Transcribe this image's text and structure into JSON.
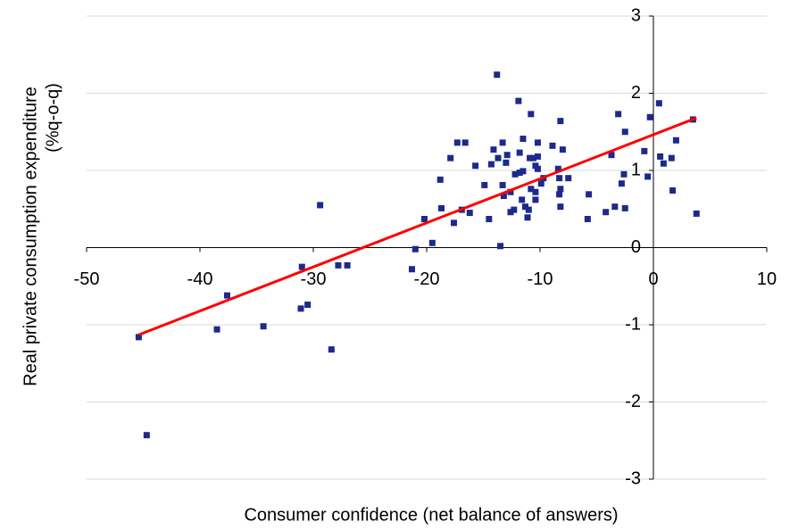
{
  "chart_data": {
    "type": "scatter",
    "x_label": "Consumer confidence (net balance of answers)",
    "y_label": [
      "Real private consumption expenditure",
      "(%q-o-q)"
    ],
    "x": [
      -45.4,
      -44.7,
      -38.5,
      -37.6,
      -34.4,
      -31.1,
      -31.0,
      -30.5,
      -29.4,
      -28.4,
      -27.8,
      -27.0,
      -21.3,
      -21.0,
      -20.2,
      -19.5,
      -18.8,
      -18.7,
      -17.9,
      -17.6,
      -17.3,
      -16.9,
      -16.6,
      -16.2,
      -15.7,
      -14.9,
      -14.5,
      -14.3,
      -14.1,
      -13.8,
      -13.7,
      -13.5,
      -13.3,
      -13.3,
      -13.2,
      -13.0,
      -12.9,
      -12.6,
      -12.6,
      -12.3,
      -12.2,
      -11.9,
      -11.8,
      -11.8,
      -11.6,
      -11.5,
      -11.5,
      -11.3,
      -11.1,
      -11.0,
      -10.9,
      -10.8,
      -10.8,
      -10.6,
      -10.4,
      -10.4,
      -10.4,
      -10.2,
      -10.2,
      -10.2,
      -9.9,
      -9.7,
      -8.9,
      -8.4,
      -8.3,
      -8.3,
      -8.2,
      -8.2,
      -8.2,
      -8.0,
      -7.5,
      -5.8,
      -5.7,
      -4.2,
      -3.7,
      -3.4,
      -3.1,
      -2.8,
      -2.6,
      -2.5,
      -2.5,
      -0.8,
      -0.5,
      -0.3,
      0.5,
      0.6,
      0.9,
      1.6,
      1.7,
      2.0,
      3.5,
      3.8
    ],
    "series": [
      {
        "color": "#1c2a8c",
        "values": [
          -1.16,
          -2.43,
          -1.06,
          -0.62,
          -1.02,
          -0.79,
          -0.25,
          -0.74,
          0.55,
          -1.32,
          -0.23,
          -0.23,
          -0.28,
          -0.02,
          0.37,
          0.06,
          0.88,
          0.51,
          1.16,
          0.32,
          1.36,
          0.49,
          1.36,
          0.45,
          1.06,
          0.81,
          0.37,
          1.08,
          1.27,
          2.24,
          1.16,
          0.02,
          1.36,
          0.81,
          0.67,
          1.1,
          1.2,
          0.46,
          0.72,
          0.49,
          0.95,
          1.9,
          1.23,
          0.97,
          0.62,
          1.41,
          0.99,
          0.53,
          0.39,
          0.49,
          1.16,
          0.76,
          1.73,
          1.16,
          1.06,
          0.72,
          0.62,
          1.36,
          1.02,
          1.18,
          0.83,
          0.9,
          1.32,
          1.02,
          0.69,
          0.9,
          0.76,
          1.64,
          0.53,
          1.27,
          0.9,
          0.37,
          0.69,
          0.46,
          1.2,
          0.53,
          1.73,
          0.83,
          0.95,
          1.5,
          0.51,
          1.25,
          0.92,
          1.69,
          1.87,
          1.18,
          1.09,
          1.16,
          0.74,
          1.39,
          1.66,
          0.44
        ]
      }
    ],
    "trendline": {
      "x": [
        -45.4,
        3.8
      ],
      "y": [
        -1.13,
        1.68
      ],
      "color": "#ff0000"
    },
    "xlim": [
      -50,
      10
    ],
    "xticks": [
      -50,
      -40,
      -30,
      -20,
      -10,
      0,
      10
    ],
    "ylim": [
      -3,
      3
    ],
    "yticks": [
      -3,
      -2,
      -1,
      0,
      1,
      2,
      3
    ],
    "grid": true
  }
}
